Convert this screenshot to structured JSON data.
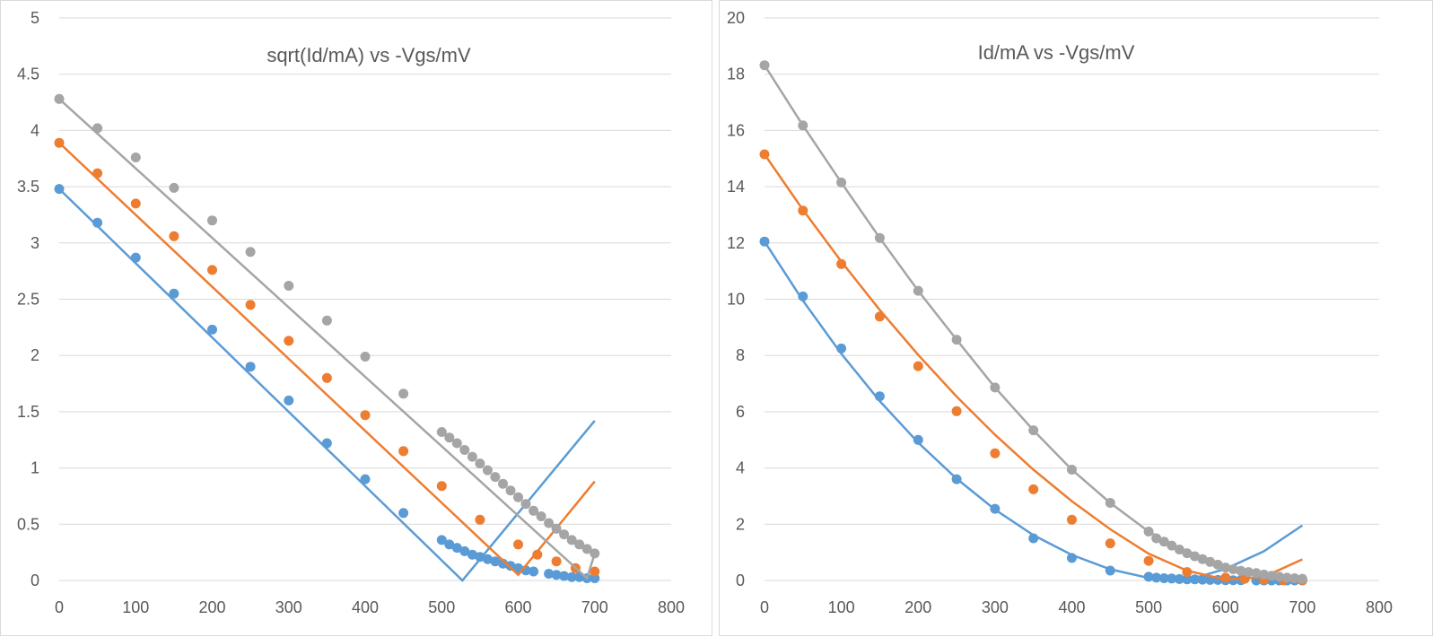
{
  "colors": {
    "series1": "#5b9bd5",
    "series2": "#ed7d31",
    "series3": "#a5a5a5",
    "grid": "#d9d9d9",
    "text": "#595959"
  },
  "chart_data": [
    {
      "type": "scatter",
      "title": "sqrt(Id/mA) vs -Vgs/mV",
      "xlabel": "",
      "ylabel": "",
      "xlim": [
        0,
        800
      ],
      "ylim": [
        0,
        5
      ],
      "xticks": [
        "0",
        "100",
        "200",
        "300",
        "400",
        "500",
        "600",
        "700",
        "800"
      ],
      "yticks": [
        "0",
        "0.5",
        "1",
        "1.5",
        "2",
        "2.5",
        "3",
        "3.5",
        "4",
        "4.5",
        "5"
      ],
      "grid": "horizontal",
      "series": [
        {
          "color": "#5b9bd5",
          "points": [
            [
              0,
              3.48
            ],
            [
              50,
              3.18
            ],
            [
              100,
              2.87
            ],
            [
              150,
              2.55
            ],
            [
              200,
              2.23
            ],
            [
              250,
              1.9
            ],
            [
              300,
              1.6
            ],
            [
              350,
              1.22
            ],
            [
              400,
              0.9
            ],
            [
              450,
              0.6
            ],
            [
              500,
              0.36
            ],
            [
              510,
              0.32
            ],
            [
              520,
              0.29
            ],
            [
              530,
              0.26
            ],
            [
              540,
              0.23
            ],
            [
              550,
              0.21
            ],
            [
              560,
              0.19
            ],
            [
              570,
              0.17
            ],
            [
              580,
              0.15
            ],
            [
              590,
              0.13
            ],
            [
              600,
              0.11
            ],
            [
              610,
              0.09
            ],
            [
              620,
              0.08
            ],
            [
              640,
              0.06
            ],
            [
              650,
              0.05
            ],
            [
              660,
              0.04
            ],
            [
              670,
              0.03
            ],
            [
              680,
              0.03
            ],
            [
              690,
              0.02
            ],
            [
              700,
              0.02
            ]
          ],
          "fit": [
            [
              0,
              3.48
            ],
            [
              527,
              0
            ],
            [
              700,
              1.42
            ]
          ]
        },
        {
          "color": "#ed7d31",
          "points": [
            [
              0,
              3.89
            ],
            [
              50,
              3.62
            ],
            [
              100,
              3.35
            ],
            [
              150,
              3.06
            ],
            [
              200,
              2.76
            ],
            [
              250,
              2.45
            ],
            [
              300,
              2.13
            ],
            [
              350,
              1.8
            ],
            [
              400,
              1.47
            ],
            [
              450,
              1.15
            ],
            [
              500,
              0.84
            ],
            [
              550,
              0.54
            ],
            [
              600,
              0.32
            ],
            [
              625,
              0.23
            ],
            [
              650,
              0.17
            ],
            [
              675,
              0.11
            ],
            [
              700,
              0.08
            ]
          ],
          "fit": [
            [
              0,
              3.89
            ],
            [
              600,
              0.05
            ],
            [
              700,
              0.88
            ]
          ]
        },
        {
          "color": "#a5a5a5",
          "points": [
            [
              0,
              4.28
            ],
            [
              50,
              4.02
            ],
            [
              100,
              3.76
            ],
            [
              150,
              3.49
            ],
            [
              200,
              3.2
            ],
            [
              250,
              2.92
            ],
            [
              300,
              2.62
            ],
            [
              350,
              2.31
            ],
            [
              400,
              1.99
            ],
            [
              450,
              1.66
            ],
            [
              500,
              1.32
            ],
            [
              510,
              1.27
            ],
            [
              520,
              1.22
            ],
            [
              530,
              1.16
            ],
            [
              540,
              1.1
            ],
            [
              550,
              1.04
            ],
            [
              560,
              0.98
            ],
            [
              570,
              0.92
            ],
            [
              580,
              0.86
            ],
            [
              590,
              0.8
            ],
            [
              600,
              0.74
            ],
            [
              610,
              0.68
            ],
            [
              620,
              0.62
            ],
            [
              630,
              0.57
            ],
            [
              640,
              0.51
            ],
            [
              650,
              0.46
            ],
            [
              660,
              0.41
            ],
            [
              670,
              0.36
            ],
            [
              680,
              0.32
            ],
            [
              690,
              0.28
            ],
            [
              700,
              0.24
            ]
          ],
          "fit": [
            [
              0,
              4.28
            ],
            [
              690,
              0.02
            ],
            [
              700,
              0.24
            ]
          ]
        }
      ]
    },
    {
      "type": "scatter",
      "title": "Id/mA vs -Vgs/mV",
      "xlabel": "",
      "ylabel": "",
      "xlim": [
        0,
        800
      ],
      "ylim": [
        0,
        20
      ],
      "xticks": [
        "0",
        "100",
        "200",
        "300",
        "400",
        "500",
        "600",
        "700",
        "800"
      ],
      "yticks": [
        "0",
        "2",
        "4",
        "6",
        "8",
        "10",
        "12",
        "14",
        "16",
        "18",
        "20"
      ],
      "grid": "horizontal",
      "series": [
        {
          "color": "#5b9bd5",
          "points": [
            [
              0,
              12.05
            ],
            [
              50,
              10.1
            ],
            [
              100,
              8.25
            ],
            [
              150,
              6.55
            ],
            [
              200,
              5.0
            ],
            [
              250,
              3.6
            ],
            [
              300,
              2.55
            ],
            [
              350,
              1.5
            ],
            [
              400,
              0.8
            ],
            [
              450,
              0.35
            ],
            [
              500,
              0.13
            ],
            [
              510,
              0.1
            ],
            [
              520,
              0.08
            ],
            [
              530,
              0.07
            ],
            [
              540,
              0.05
            ],
            [
              550,
              0.04
            ],
            [
              560,
              0.04
            ],
            [
              570,
              0.03
            ],
            [
              580,
              0.02
            ],
            [
              590,
              0.02
            ],
            [
              600,
              0.01
            ],
            [
              610,
              0.01
            ],
            [
              620,
              0.01
            ],
            [
              640,
              0.0
            ],
            [
              650,
              0.0
            ],
            [
              660,
              0.0
            ],
            [
              670,
              0.0
            ],
            [
              680,
              0.0
            ],
            [
              690,
              0.0
            ],
            [
              700,
              0.0
            ]
          ],
          "fit": [
            [
              0,
              12.05
            ],
            [
              50,
              9.95
            ],
            [
              100,
              8.06
            ],
            [
              150,
              6.38
            ],
            [
              200,
              4.9
            ],
            [
              250,
              3.62
            ],
            [
              300,
              2.52
            ],
            [
              350,
              1.61
            ],
            [
              400,
              0.91
            ],
            [
              450,
              0.4
            ],
            [
              500,
              0.09
            ],
            [
              530,
              0.01
            ],
            [
              560,
              0.09
            ],
            [
              600,
              0.41
            ],
            [
              650,
              1.04
            ],
            [
              700,
              1.96
            ]
          ]
        },
        {
          "color": "#ed7d31",
          "points": [
            [
              0,
              15.15
            ],
            [
              50,
              13.15
            ],
            [
              100,
              11.25
            ],
            [
              150,
              9.38
            ],
            [
              200,
              7.62
            ],
            [
              250,
              6.02
            ],
            [
              300,
              4.52
            ],
            [
              350,
              3.24
            ],
            [
              400,
              2.16
            ],
            [
              450,
              1.32
            ],
            [
              500,
              0.7
            ],
            [
              550,
              0.3
            ],
            [
              600,
              0.1
            ],
            [
              625,
              0.06
            ],
            [
              650,
              0.03
            ],
            [
              675,
              0.01
            ],
            [
              700,
              0.01
            ]
          ],
          "fit": [
            [
              0,
              15.15
            ],
            [
              50,
              13.18
            ],
            [
              100,
              11.34
            ],
            [
              150,
              9.62
            ],
            [
              200,
              8.02
            ],
            [
              250,
              6.54
            ],
            [
              300,
              5.18
            ],
            [
              350,
              3.94
            ],
            [
              400,
              2.82
            ],
            [
              450,
              1.82
            ],
            [
              500,
              0.95
            ],
            [
              550,
              0.35
            ],
            [
              600,
              0.03
            ],
            [
              650,
              0.13
            ],
            [
              700,
              0.75
            ]
          ]
        },
        {
          "color": "#a5a5a5",
          "points": [
            [
              0,
              18.32
            ],
            [
              50,
              16.18
            ],
            [
              100,
              14.15
            ],
            [
              150,
              12.18
            ],
            [
              200,
              10.3
            ],
            [
              250,
              8.56
            ],
            [
              300,
              6.86
            ],
            [
              350,
              5.34
            ],
            [
              400,
              3.94
            ],
            [
              450,
              2.76
            ],
            [
              500,
              1.74
            ],
            [
              510,
              1.5
            ],
            [
              520,
              1.38
            ],
            [
              530,
              1.24
            ],
            [
              540,
              1.1
            ],
            [
              550,
              0.97
            ],
            [
              560,
              0.86
            ],
            [
              570,
              0.76
            ],
            [
              580,
              0.66
            ],
            [
              590,
              0.56
            ],
            [
              600,
              0.46
            ],
            [
              610,
              0.4
            ],
            [
              620,
              0.34
            ],
            [
              630,
              0.3
            ],
            [
              640,
              0.26
            ],
            [
              650,
              0.21
            ],
            [
              660,
              0.17
            ],
            [
              670,
              0.13
            ],
            [
              680,
              0.1
            ],
            [
              690,
              0.08
            ],
            [
              700,
              0.06
            ]
          ],
          "fit": [
            [
              0,
              18.32
            ],
            [
              50,
              16.18
            ],
            [
              100,
              14.15
            ],
            [
              150,
              12.18
            ],
            [
              200,
              10.3
            ],
            [
              250,
              8.56
            ],
            [
              300,
              6.86
            ],
            [
              350,
              5.34
            ],
            [
              400,
              3.94
            ],
            [
              450,
              2.76
            ],
            [
              500,
              1.74
            ],
            [
              550,
              0.97
            ],
            [
              600,
              0.46
            ],
            [
              650,
              0.21
            ],
            [
              700,
              0.06
            ]
          ]
        }
      ]
    }
  ]
}
